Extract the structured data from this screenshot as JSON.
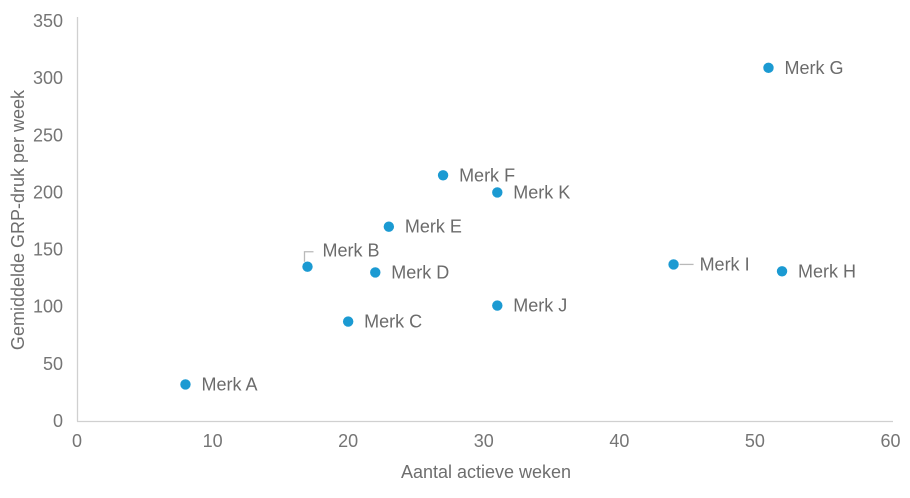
{
  "chart_data": {
    "type": "scatter",
    "title": "",
    "xlabel": "Aantal actieve weken",
    "ylabel": "Gemiddelde GRP-druk per week",
    "xlim": [
      0,
      60
    ],
    "ylim": [
      0,
      350
    ],
    "xticks": [
      0,
      10,
      20,
      30,
      40,
      50,
      60
    ],
    "yticks": [
      0,
      50,
      100,
      150,
      200,
      250,
      300,
      350
    ],
    "grid": false,
    "legend": false,
    "marker_color": "#1b9ad2",
    "axis_line_color": "#d0d0d0",
    "leader_line_color": "#b9b9b9",
    "series": [
      {
        "name": "Merk A",
        "x": 8,
        "y": 32
      },
      {
        "name": "Merk B",
        "x": 17,
        "y": 135,
        "label_dx": 15,
        "label_dy": -10,
        "leader": [
          [
            -3,
            -5
          ],
          [
            -3,
            -15
          ],
          [
            6,
            -15
          ]
        ]
      },
      {
        "name": "Merk C",
        "x": 20,
        "y": 87
      },
      {
        "name": "Merk D",
        "x": 22,
        "y": 130
      },
      {
        "name": "Merk E",
        "x": 23,
        "y": 170
      },
      {
        "name": "Merk F",
        "x": 27,
        "y": 215
      },
      {
        "name": "Merk G",
        "x": 51,
        "y": 309
      },
      {
        "name": "Merk H",
        "x": 52,
        "y": 131
      },
      {
        "name": "Merk I",
        "x": 44,
        "y": 137,
        "label_dx": 26,
        "label_dy": 6,
        "leader": [
          [
            6,
            0
          ],
          [
            20,
            0
          ]
        ]
      },
      {
        "name": "Merk J",
        "x": 31,
        "y": 101
      },
      {
        "name": "Merk K",
        "x": 31,
        "y": 200
      }
    ]
  }
}
